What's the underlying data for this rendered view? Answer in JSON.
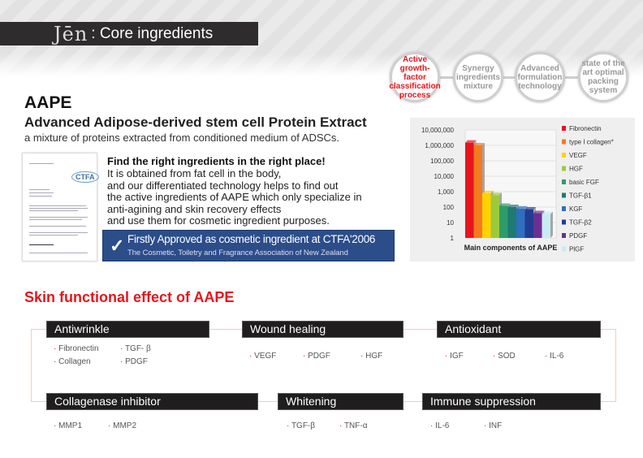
{
  "header": {
    "logo": "Jēn",
    "title": ": Core ingredients"
  },
  "process_steps": [
    {
      "label": "Active growth-factor classification process",
      "active": true
    },
    {
      "label": "Synergy ingredients mixture",
      "active": false
    },
    {
      "label": "Advanced formulation technology",
      "active": false
    },
    {
      "label": "state of the art optimal packing system",
      "active": false
    }
  ],
  "intro": {
    "title": "AAPE",
    "subtitle": "Advanced Adipose-derived stem cell Protein Extract",
    "mixture": "a mixture of proteins extracted from conditioned medium of ADSCs.",
    "heading": "Find the right ingredients in the right place!",
    "description": "It is obtained from fat cell in the body,\nand our differentiated technology helps to find out\nthe active ingredients of AAPE which only specialize in\nanti-agining and skin recovery effects\nand use them for cosmetic ingredient purposes.",
    "doc_logo": "CTFA",
    "approval_title": "Firstly Approved as cosmetic ingredient at CTFA'2006",
    "approval_sub": "The Cosmetic, Toiletry and Fragrance Association of New Zealand"
  },
  "chart_data": {
    "type": "bar",
    "title": "Main components of AAPE",
    "yscale": "log",
    "ylim": [
      1,
      10000000
    ],
    "yticks": [
      "10,000,000",
      "1,000,000",
      "100,000",
      "10,000",
      "1,000",
      "100",
      "10",
      "1"
    ],
    "categories": [
      "Fibronectin",
      "type I collagen*",
      "VEGF",
      "HGF",
      "basic FGF",
      "TGF-β1",
      "KGF",
      "TGF-β2",
      "PDGF",
      "PlGF"
    ],
    "values": [
      1500000,
      1000000,
      800,
      600,
      120,
      100,
      80,
      70,
      40,
      35
    ],
    "colors": [
      "#e8141c",
      "#f47a20",
      "#ffd200",
      "#9bcb3b",
      "#2e9c6a",
      "#1f7a73",
      "#2f6fc0",
      "#233c92",
      "#6b2f93",
      "#c8ecf2"
    ],
    "legend": "right"
  },
  "effects": {
    "title": "Skin functional effect of AAPE",
    "groups": [
      {
        "name": "Antiwrinkle",
        "items": [
          "Fibronectin",
          "Collagen",
          "TGF- β",
          "PDGF"
        ]
      },
      {
        "name": "Wound healing",
        "items": [
          "VEGF",
          "PDGF",
          "HGF"
        ]
      },
      {
        "name": "Antioxidant",
        "items": [
          "IGF",
          "SOD",
          "IL-6"
        ]
      },
      {
        "name": "Collagenase inhibitor",
        "items": [
          "MMP1",
          "MMP2"
        ]
      },
      {
        "name": "Whitening",
        "items": [
          "TGF-β",
          "TNF-α"
        ]
      },
      {
        "name": "Immune suppression",
        "items": [
          "IL-6",
          "INF"
        ]
      }
    ]
  }
}
